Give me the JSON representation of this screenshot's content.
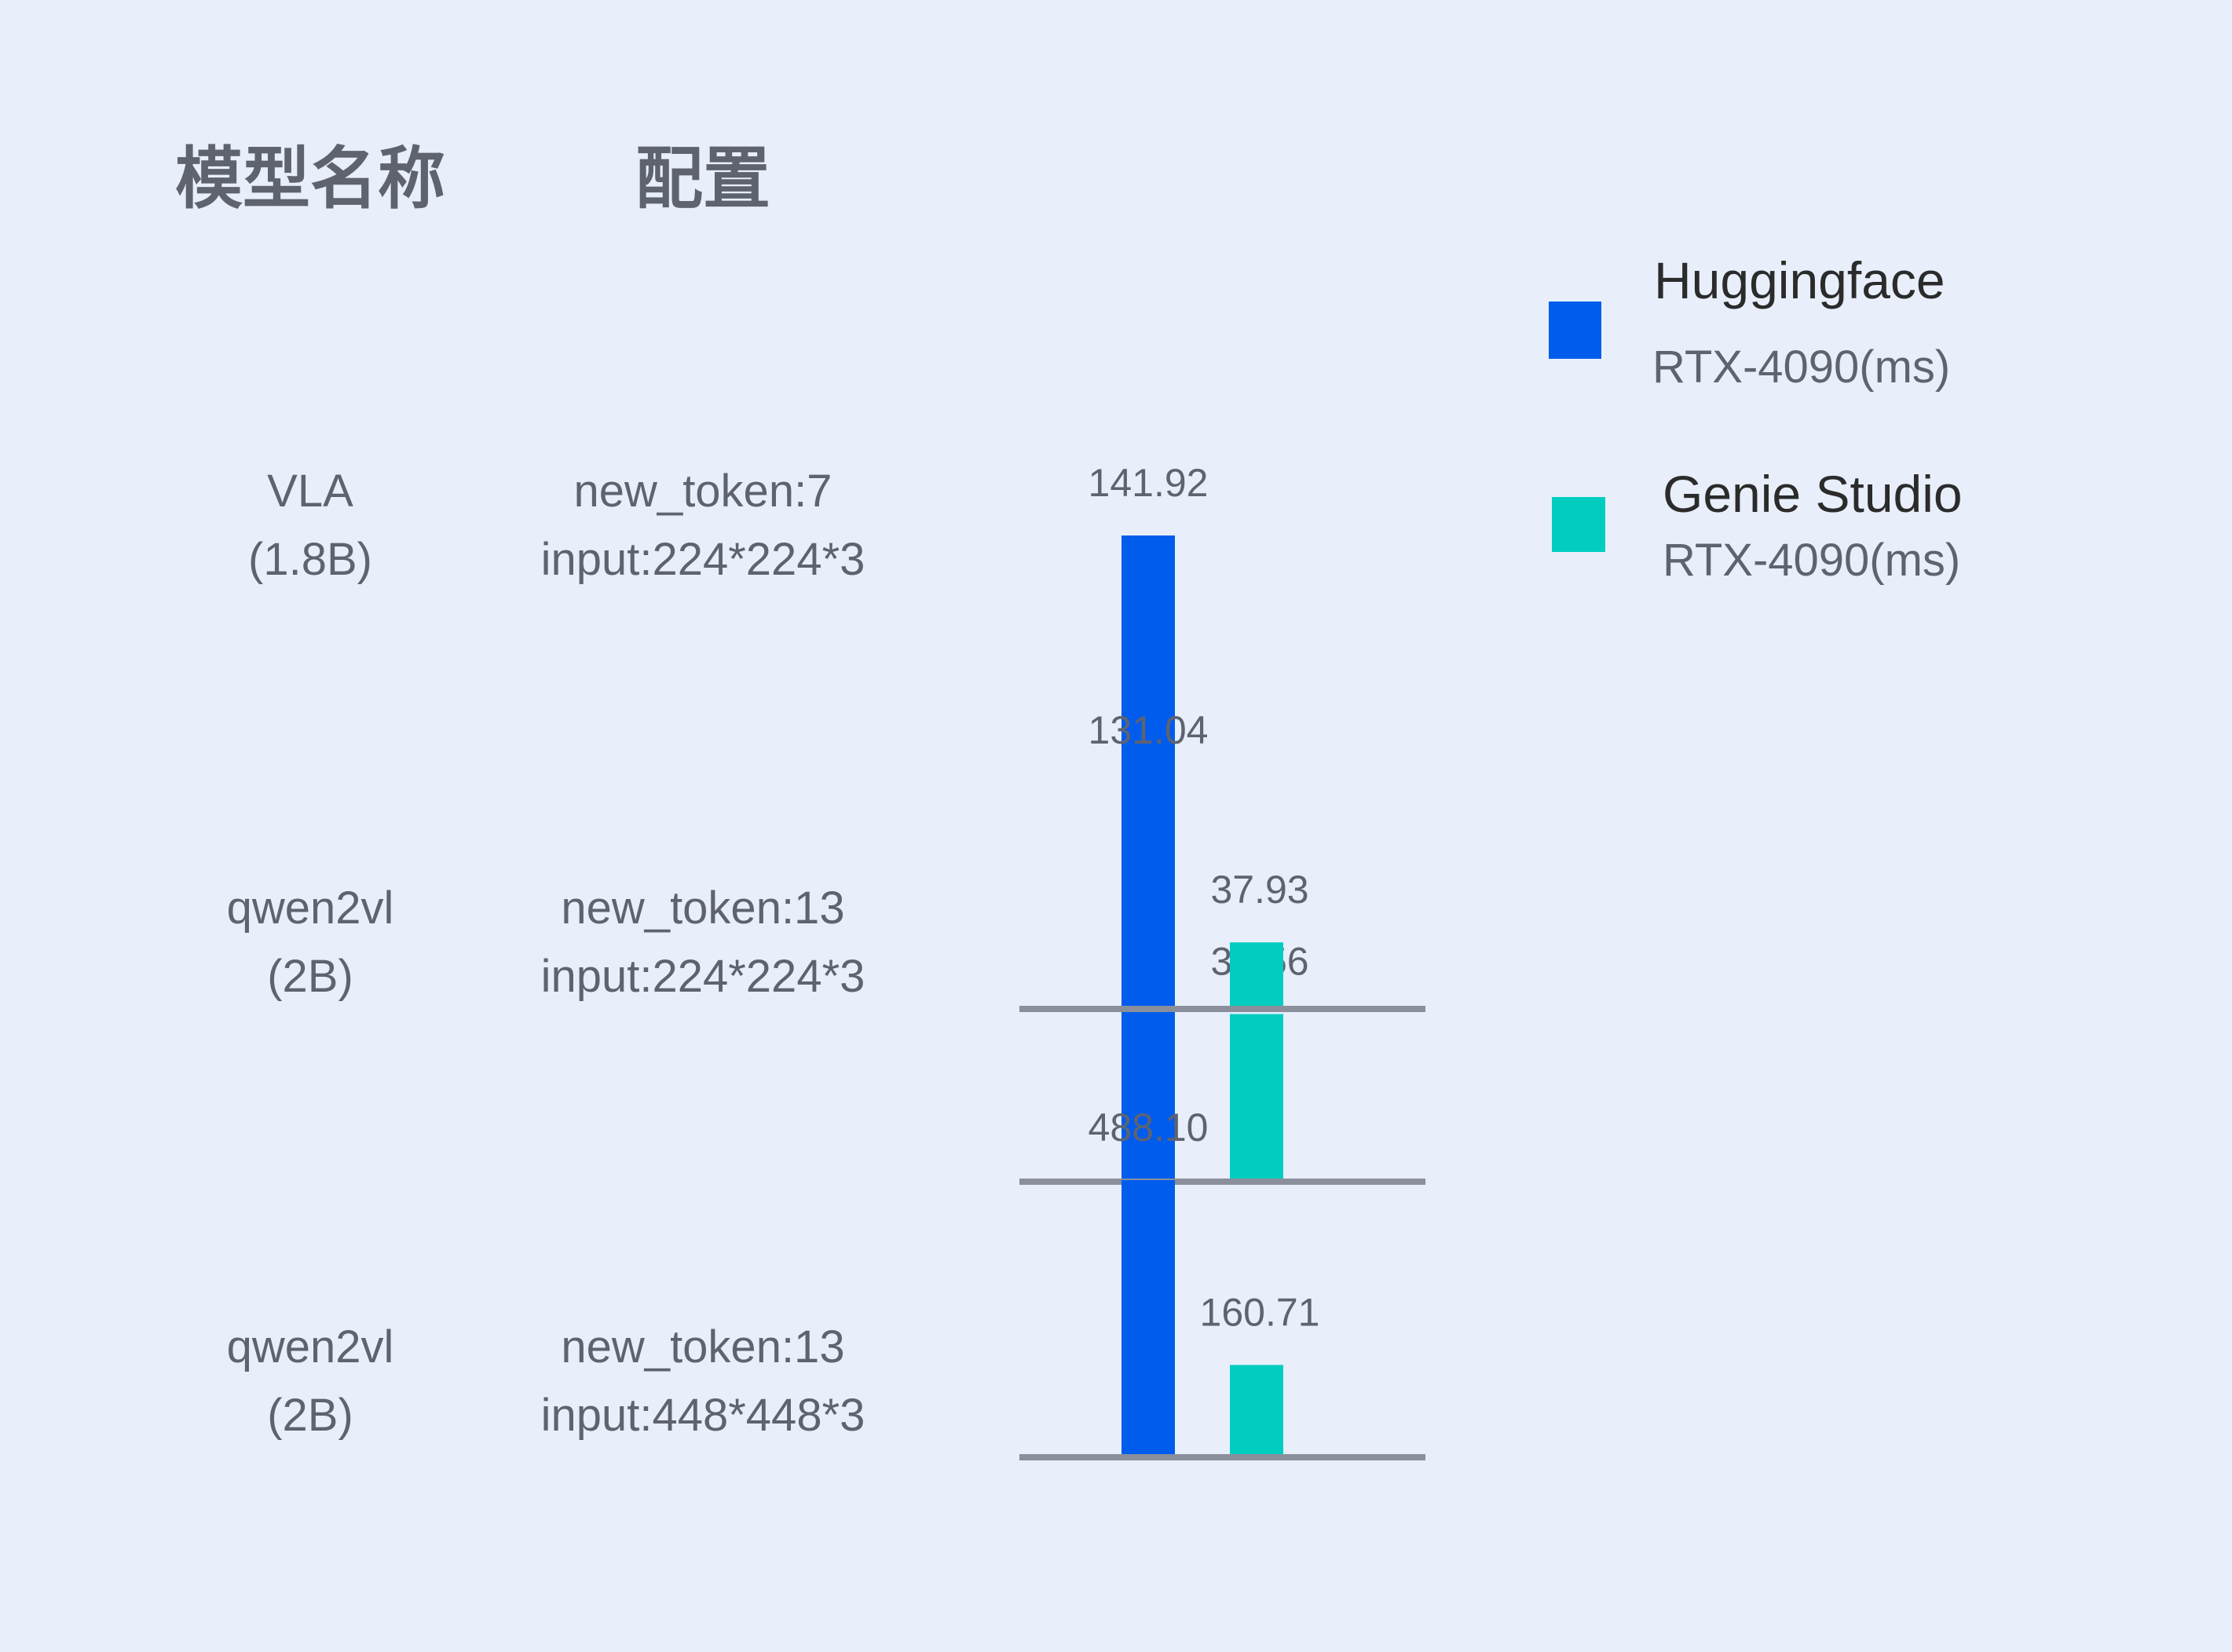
{
  "headers": {
    "model": "模型名称",
    "config": "配置"
  },
  "legend": [
    {
      "title": "Huggingface",
      "subtitle": "RTX-4090(ms)",
      "color": "#005ced"
    },
    {
      "title": "Genie Studio",
      "subtitle": "RTX-4090(ms)",
      "color": "#00cdc0"
    }
  ],
  "axis_color": "#8a8f9b",
  "chart_data": [
    {
      "type": "bar",
      "model": [
        "VLA",
        "(1.8B)"
      ],
      "config": [
        "new_token:7",
        "input:224*224*3"
      ],
      "series": [
        {
          "name": "Huggingface RTX-4090(ms)",
          "value": 141.92,
          "label": "141.92"
        },
        {
          "name": "Genie Studio RTX-4090(ms)",
          "value": 36.56,
          "label": "36.56"
        }
      ]
    },
    {
      "type": "bar",
      "model": [
        "qwen2vl",
        "(2B)"
      ],
      "config": [
        "new_token:13",
        "input:224*224*3"
      ],
      "series": [
        {
          "name": "Huggingface RTX-4090(ms)",
          "value": 131.04,
          "label": "131.04"
        },
        {
          "name": "Genie Studio RTX-4090(ms)",
          "value": 37.93,
          "label": "37.93"
        }
      ]
    },
    {
      "type": "bar",
      "model": [
        "qwen2vl",
        "(2B)"
      ],
      "config": [
        "new_token:13",
        "input:448*448*3"
      ],
      "series": [
        {
          "name": "Huggingface RTX-4090(ms)",
          "value": 488.1,
          "label": "488.10"
        },
        {
          "name": "Genie Studio RTX-4090(ms)",
          "value": 160.71,
          "label": "160.71"
        }
      ]
    }
  ]
}
